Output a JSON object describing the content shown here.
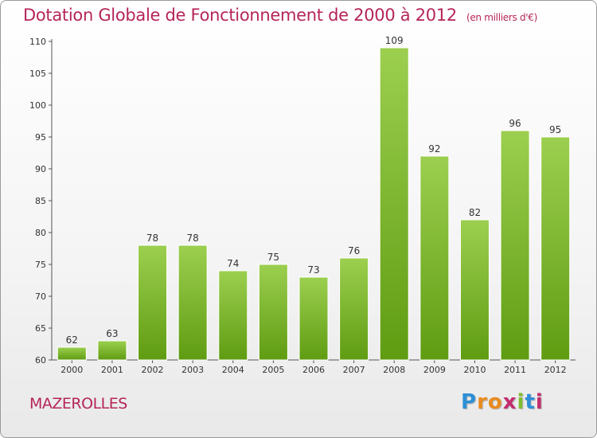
{
  "title": "Dotation Globale de Fonctionnement de 2000 à 2012",
  "subtitle": "(en milliers d'€)",
  "commune": "MAZEROLLES",
  "logo": {
    "letters": [
      "P",
      "r",
      "o",
      "x",
      "i",
      "t",
      "i"
    ],
    "colors": [
      "#2e8fd6",
      "#e98b1f",
      "#e98b1f",
      "#c22d6e",
      "#7fbd2f",
      "#2e8fd6",
      "#c22d6e"
    ]
  },
  "colors": {
    "bar_top": "#9ccf4f",
    "bar_bottom": "#5f9c12",
    "title": "#b5255a"
  },
  "chart_data": {
    "type": "bar",
    "categories": [
      "2000",
      "2001",
      "2002",
      "2003",
      "2004",
      "2005",
      "2006",
      "2007",
      "2008",
      "2009",
      "2010",
      "2011",
      "2012"
    ],
    "values": [
      62,
      63,
      78,
      78,
      74,
      75,
      73,
      76,
      109,
      92,
      82,
      96,
      95
    ],
    "title": "Dotation Globale de Fonctionnement de 2000 à 2012",
    "subtitle": "(en milliers d'€)",
    "ylim": [
      60,
      110
    ],
    "yticks": [
      60,
      65,
      70,
      75,
      80,
      85,
      90,
      95,
      100,
      105,
      110
    ],
    "grid": false,
    "legend": "none"
  }
}
